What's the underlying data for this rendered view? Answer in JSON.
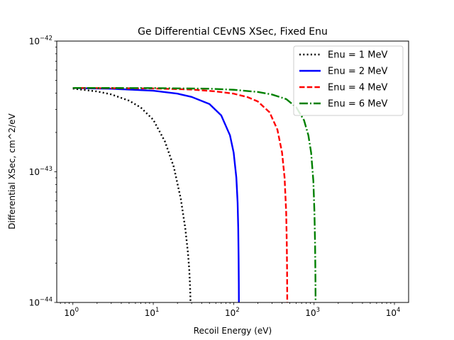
{
  "chart_data": {
    "type": "line",
    "title": "Ge Differential CEvNS XSec, Fixed Enu",
    "xlabel": "Recoil Energy (eV)",
    "ylabel": "Differential XSec, cm^2/eV",
    "xscale": "log",
    "yscale": "log",
    "xlim": [
      0.63,
      15000
    ],
    "ylim": [
      1e-44,
      1e-42
    ],
    "grid": false,
    "legend_position": "top-right",
    "x_ticks": [
      {
        "value": 1,
        "base": "10",
        "exp": "0"
      },
      {
        "value": 10,
        "base": "10",
        "exp": "1"
      },
      {
        "value": 100,
        "base": "10",
        "exp": "2"
      },
      {
        "value": 1000,
        "base": "10",
        "exp": "3"
      },
      {
        "value": 10000,
        "base": "10",
        "exp": "4"
      }
    ],
    "y_ticks": [
      {
        "value": 1e-44,
        "base": "10",
        "exp": "−44"
      },
      {
        "value": 1e-43,
        "base": "10",
        "exp": "−43"
      },
      {
        "value": 1e-42,
        "base": "10",
        "exp": "−42"
      }
    ],
    "series": [
      {
        "name": "Enu = 1 MeV",
        "color": "#000000",
        "style": "dotted",
        "x": [
          1,
          2,
          3,
          5,
          7,
          10,
          14,
          18,
          22,
          25,
          27,
          28,
          28.5,
          28.9,
          29.05
        ],
        "y": [
          4.33e-43,
          4.12e-43,
          3.91e-43,
          3.5e-43,
          3.1e-43,
          2.5e-43,
          1.7e-43,
          1.09e-43,
          6.2e-44,
          3.7e-44,
          2.4e-44,
          1.8e-44,
          1.45e-44,
          1.15e-44,
          1e-44
        ]
      },
      {
        "name": "Enu = 2 MeV",
        "color": "#0000ff",
        "style": "solid",
        "x": [
          1,
          3,
          10,
          20,
          30,
          50,
          70,
          90,
          100,
          108,
          112,
          114,
          115.2,
          115.9,
          116.2
        ],
        "y": [
          4.37e-43,
          4.32e-43,
          4.17e-43,
          3.96e-43,
          3.74e-43,
          3.3e-43,
          2.7e-43,
          1.9e-43,
          1.4e-43,
          9e-44,
          5.8e-44,
          3.7e-44,
          2.2e-44,
          1.4e-44,
          1e-44
        ]
      },
      {
        "name": "Enu = 4 MeV",
        "color": "#ff0000",
        "style": "dashed",
        "x": [
          1,
          10,
          30,
          60,
          100,
          150,
          200,
          280,
          350,
          400,
          430,
          450,
          458,
          462,
          464
        ],
        "y": [
          4.38e-43,
          4.34e-43,
          4.26e-43,
          4.12e-43,
          3.96e-43,
          3.72e-43,
          3.45e-43,
          2.85e-43,
          2.1e-43,
          1.4e-43,
          9e-44,
          4.9e-44,
          2.8e-44,
          1.7e-44,
          1e-44
        ]
      },
      {
        "name": "Enu = 6 MeV",
        "color": "#008000",
        "style": "dashdot",
        "x": [
          1,
          10,
          50,
          100,
          200,
          300,
          450,
          600,
          750,
          850,
          920,
          980,
          1010,
          1030,
          1040,
          1045
        ],
        "y": [
          4.38e-43,
          4.37e-43,
          4.32e-43,
          4.24e-43,
          4.08e-43,
          3.9e-43,
          3.6e-43,
          3.12e-43,
          2.48e-43,
          1.9e-43,
          1.4e-43,
          8.5e-44,
          5e-44,
          2.8e-44,
          1.6e-44,
          1e-44
        ]
      }
    ]
  }
}
